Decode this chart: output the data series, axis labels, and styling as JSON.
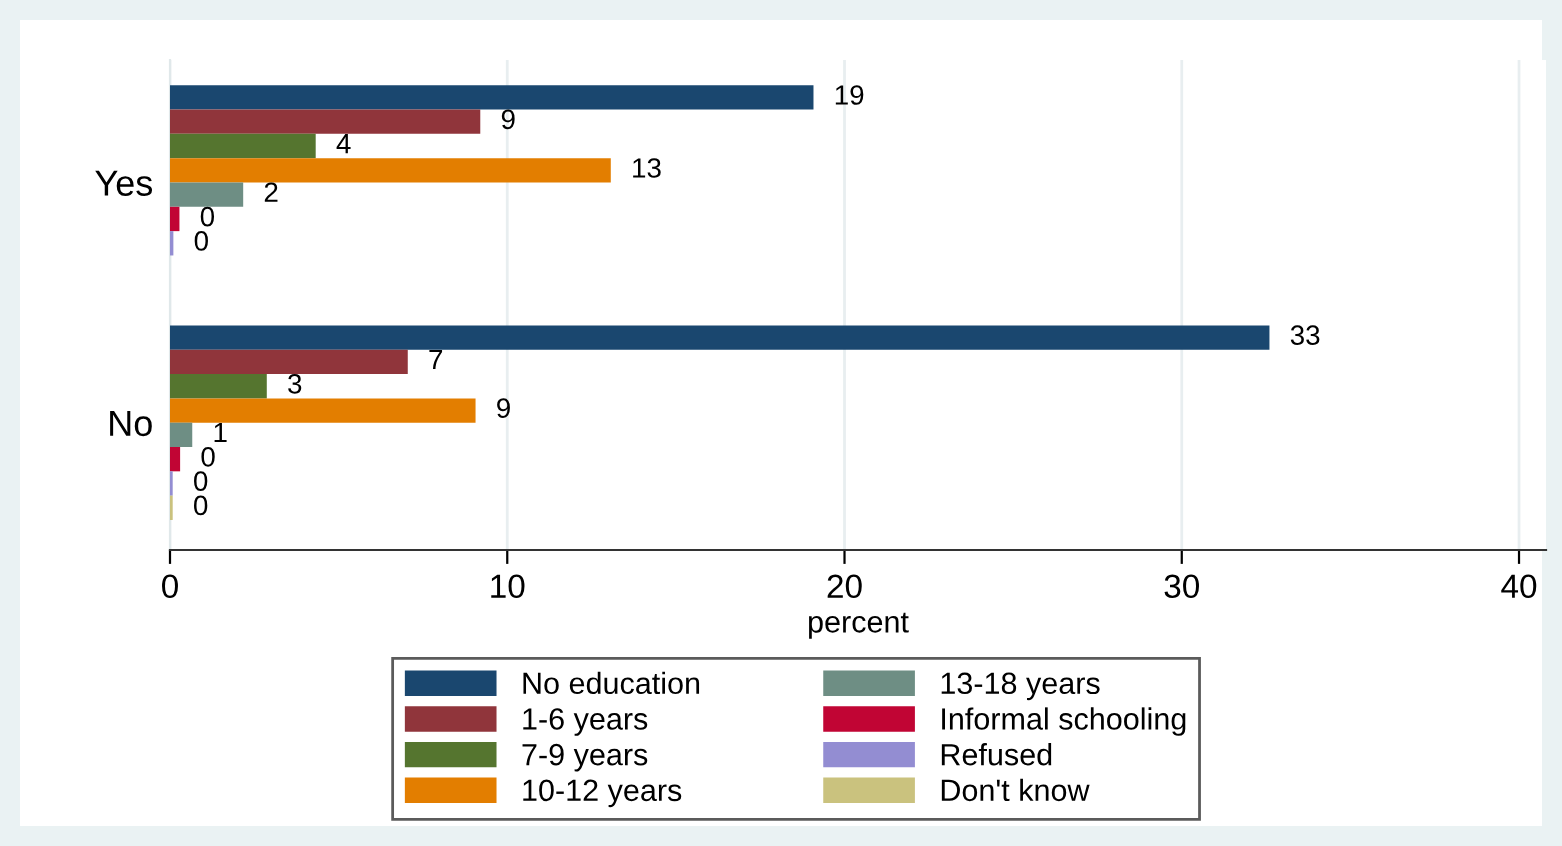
{
  "chart_data": {
    "type": "bar",
    "orientation": "horizontal",
    "xlabel": "percent",
    "categories": [
      "Yes",
      "No"
    ],
    "xlim": [
      0,
      40.8
    ],
    "xticks": [
      0,
      10,
      20,
      30,
      40
    ],
    "grid": "x",
    "legend": "bottom",
    "series": [
      {
        "name": "No education",
        "color": "#1a476f",
        "values": [
          19.08,
          32.6
        ],
        "value_labels": [
          "19",
          "33"
        ]
      },
      {
        "name": "1-6 years",
        "color": "#90353b",
        "values": [
          9.2,
          7.05
        ],
        "value_labels": [
          "9",
          "7"
        ]
      },
      {
        "name": "7-9 years",
        "color": "#55752f",
        "values": [
          4.32,
          2.87
        ],
        "value_labels": [
          "4",
          "3"
        ]
      },
      {
        "name": "10-12 years",
        "color": "#e37e00",
        "values": [
          13.07,
          9.06
        ],
        "value_labels": [
          "13",
          "9"
        ]
      },
      {
        "name": "13-18 years",
        "color": "#6e8e84",
        "values": [
          2.17,
          0.66
        ],
        "value_labels": [
          "2",
          "1"
        ]
      },
      {
        "name": "Informal schooling",
        "color": "#c10534",
        "values": [
          0.28,
          0.3
        ],
        "value_labels": [
          "0",
          "0"
        ]
      },
      {
        "name": "Refused",
        "color": "#938dd2",
        "values": [
          0.1,
          0.08
        ],
        "value_labels": [
          "0",
          "0"
        ]
      },
      {
        "name": "Don't know",
        "color": "#cac27e",
        "values": [
          null,
          0.08
        ],
        "value_labels": [
          null,
          "0"
        ]
      }
    ]
  }
}
